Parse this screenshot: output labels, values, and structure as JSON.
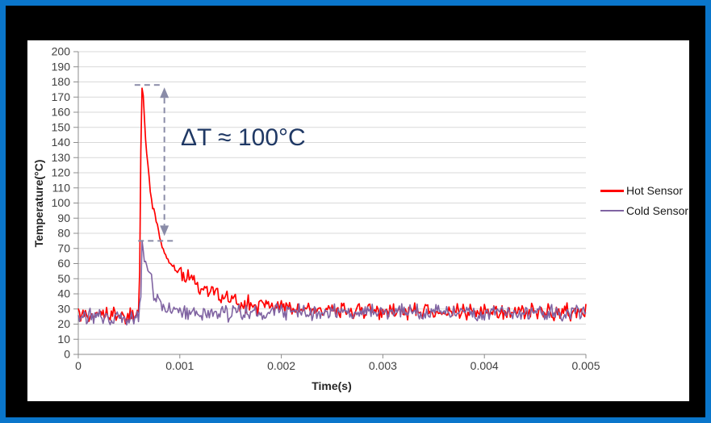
{
  "window": {
    "border_color": "#0a76cb",
    "frame_color": "#000000",
    "card_color": "#ffffff"
  },
  "chart_data": {
    "type": "line",
    "title": "",
    "xlabel": "Time(s)",
    "ylabel": "Temperature(°C)",
    "xlim": [
      0,
      0.005
    ],
    "ylim": [
      0,
      200
    ],
    "x_ticks": {
      "values": [
        0,
        0.001,
        0.002,
        0.003,
        0.004,
        0.005
      ],
      "labels": [
        "0",
        "0.001",
        "0.002",
        "0.003",
        "0.004",
        "0.005"
      ]
    },
    "y_ticks": {
      "min": 0,
      "max": 200,
      "step": 10
    },
    "grid": "horizontal",
    "grid_color": "#d9d9d9",
    "axis_color": "#8c8c8c",
    "tick_color": "#3f3f3f",
    "legend_position": "right",
    "series": [
      {
        "name": "Hot Sensor",
        "color": "#ff0000",
        "width": 1.7,
        "seed": 29,
        "noise_amplitude": 6.5,
        "keypoints": [
          [
            0,
            26
          ],
          [
            0.0006,
            26
          ],
          [
            0.000615,
            120
          ],
          [
            0.00062,
            170
          ],
          [
            0.00063,
            178
          ],
          [
            0.000645,
            165
          ],
          [
            0.000665,
            140
          ],
          [
            0.000688,
            124
          ],
          [
            0.000712,
            106
          ],
          [
            0.000726,
            99
          ],
          [
            0.000744,
            95
          ],
          [
            0.000768,
            88
          ],
          [
            0.000792,
            81
          ],
          [
            0.000824,
            72
          ],
          [
            0.000848,
            67
          ],
          [
            0.000904,
            60
          ],
          [
            0.000952,
            57
          ],
          [
            0.001064,
            51
          ],
          [
            0.001168,
            47
          ],
          [
            0.001272,
            42
          ],
          [
            0.001384,
            38
          ],
          [
            0.0016,
            34
          ],
          [
            0.0019,
            31
          ],
          [
            0.0023,
            29
          ],
          [
            0.003,
            28
          ],
          [
            0.005,
            28
          ]
        ]
      },
      {
        "name": "Cold Sensor",
        "color": "#8064a2",
        "width": 1.6,
        "seed": 101,
        "noise_amplitude": 6.5,
        "keypoints": [
          [
            0,
            25
          ],
          [
            0.0006,
            25
          ],
          [
            0.000617,
            45
          ],
          [
            0.000628,
            74
          ],
          [
            0.00065,
            63
          ],
          [
            0.000675,
            58
          ],
          [
            0.0007,
            52
          ],
          [
            0.00073,
            46
          ],
          [
            0.000744,
            42
          ],
          [
            0.000768,
            38
          ],
          [
            0.000792,
            36
          ],
          [
            0.000824,
            33
          ],
          [
            0.000848,
            31
          ],
          [
            0.0009,
            30
          ],
          [
            0.001,
            29
          ],
          [
            0.0012,
            28
          ],
          [
            0.0015,
            27
          ],
          [
            0.002,
            28
          ],
          [
            0.005,
            28
          ]
        ]
      }
    ],
    "annotation": {
      "label": "ΔT ≈ 100°C",
      "color": "#1f3864",
      "arrow_color": "#8a8ca8",
      "top_value": 178,
      "bottom_value": 75,
      "arrow_t": 0.000848,
      "top_line_t": [
        0.000555,
        0.00082
      ],
      "bottom_line_t": [
        0.00059,
        0.00097
      ]
    }
  }
}
